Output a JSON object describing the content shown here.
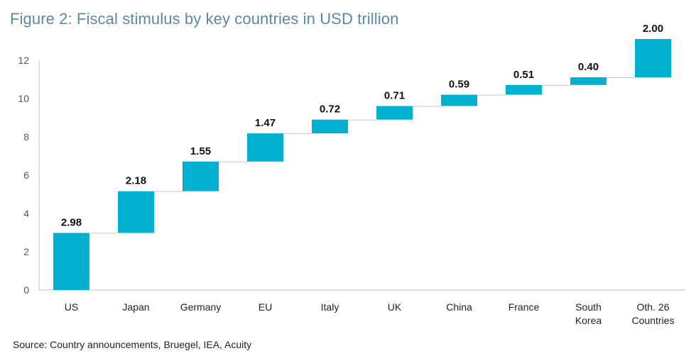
{
  "title": "Figure 2: Fiscal stimulus by key countries in USD trillion",
  "source": "Source: Country announcements, Bruegel, IEA, Acuity",
  "colors": {
    "bar": "#00b0d0",
    "axis": "#bfbfbf",
    "connector": "#c8c8c8",
    "tick_text": "#555555",
    "label_text": "#111111",
    "title": "#5b87a6"
  },
  "chart_data": {
    "type": "waterfall",
    "title": "Figure 2: Fiscal stimulus by key countries in USD trillion",
    "categories": [
      [
        "US"
      ],
      [
        "Japan"
      ],
      [
        "Germany"
      ],
      [
        "EU"
      ],
      [
        "Italy"
      ],
      [
        "UK"
      ],
      [
        "China"
      ],
      [
        "France"
      ],
      [
        "South",
        "Korea"
      ],
      [
        "Oth. 26",
        "Countries"
      ]
    ],
    "values": [
      2.98,
      2.18,
      1.55,
      1.47,
      0.72,
      0.71,
      0.59,
      0.51,
      0.4,
      2.0
    ],
    "value_labels": [
      "2.98",
      "2.18",
      "1.55",
      "1.47",
      "0.72",
      "0.71",
      "0.59",
      "0.51",
      "0.40",
      "2.00"
    ],
    "ylim": [
      0,
      12
    ],
    "yticks": [
      0,
      2,
      4,
      6,
      8,
      10,
      12
    ],
    "grid": false,
    "legend": "none",
    "xlabel": "",
    "ylabel": ""
  }
}
